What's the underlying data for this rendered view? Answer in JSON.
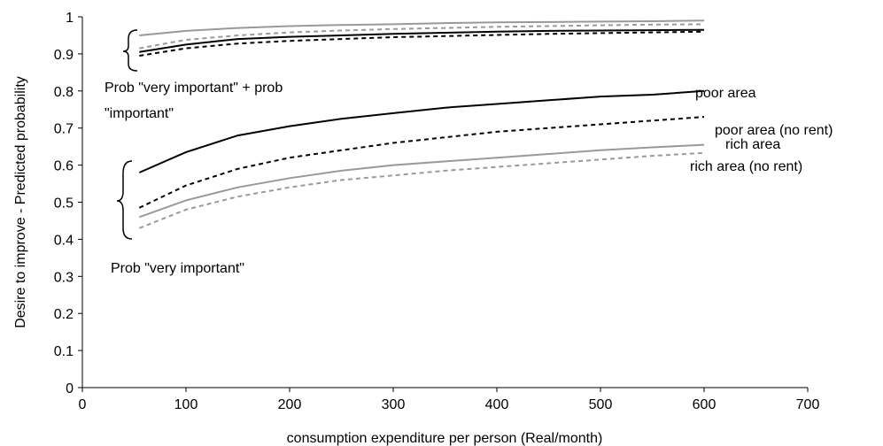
{
  "chart_data": {
    "type": "line",
    "title": "",
    "xlabel": "consumption expenditure per person (Real/month)",
    "ylabel": "Desire to improve - Predicted probability",
    "xlim": [
      0,
      700
    ],
    "ylim": [
      0,
      1
    ],
    "xticks": [
      "0",
      "100",
      "200",
      "300",
      "400",
      "500",
      "600",
      "700"
    ],
    "yticks": [
      "0",
      "0.1",
      "0.2",
      "0.3",
      "0.4",
      "0.5",
      "0.6",
      "0.7",
      "0.8",
      "0.9",
      "1"
    ],
    "grid": false,
    "legend": "none",
    "annotations": [
      "Prob \"very important\" + prob",
      "\"important\"",
      "Prob \"very important\""
    ],
    "x": [
      55,
      100,
      150,
      200,
      250,
      300,
      350,
      400,
      450,
      500,
      550,
      600
    ],
    "series": [
      {
        "name": "poor area",
        "group": "very important",
        "color": "#000000",
        "dash": "solid",
        "values": [
          0.58,
          0.635,
          0.68,
          0.705,
          0.725,
          0.74,
          0.755,
          0.765,
          0.775,
          0.785,
          0.79,
          0.8
        ]
      },
      {
        "name": "poor area (no rent)",
        "group": "very important",
        "color": "#000000",
        "dash": "dashed",
        "values": [
          0.485,
          0.545,
          0.59,
          0.62,
          0.64,
          0.66,
          0.675,
          0.69,
          0.7,
          0.71,
          0.72,
          0.73
        ]
      },
      {
        "name": "rich area",
        "group": "very important",
        "color": "#999999",
        "dash": "solid",
        "values": [
          0.46,
          0.505,
          0.54,
          0.565,
          0.585,
          0.6,
          0.61,
          0.62,
          0.63,
          0.64,
          0.648,
          0.655
        ]
      },
      {
        "name": "rich area (no rent)",
        "group": "very important",
        "color": "#999999",
        "dash": "dashed",
        "values": [
          0.43,
          0.48,
          0.515,
          0.54,
          0.56,
          0.572,
          0.585,
          0.595,
          0.605,
          0.615,
          0.625,
          0.633
        ]
      },
      {
        "name": "",
        "group": "very important + important",
        "color": "#999999",
        "dash": "solid",
        "values": [
          0.95,
          0.962,
          0.97,
          0.975,
          0.978,
          0.98,
          0.983,
          0.985,
          0.986,
          0.987,
          0.988,
          0.99
        ]
      },
      {
        "name": "",
        "group": "very important + important",
        "color": "#999999",
        "dash": "dashed",
        "values": [
          0.915,
          0.938,
          0.95,
          0.958,
          0.963,
          0.967,
          0.97,
          0.973,
          0.975,
          0.977,
          0.979,
          0.98
        ]
      },
      {
        "name": "",
        "group": "very important + important",
        "color": "#000000",
        "dash": "solid",
        "values": [
          0.905,
          0.925,
          0.94,
          0.946,
          0.95,
          0.954,
          0.957,
          0.96,
          0.962,
          0.963,
          0.964,
          0.965
        ]
      },
      {
        "name": "",
        "group": "very important + important",
        "color": "#000000",
        "dash": "dashed",
        "values": [
          0.895,
          0.915,
          0.928,
          0.935,
          0.94,
          0.945,
          0.948,
          0.951,
          0.954,
          0.956,
          0.958,
          0.96
        ]
      }
    ]
  }
}
